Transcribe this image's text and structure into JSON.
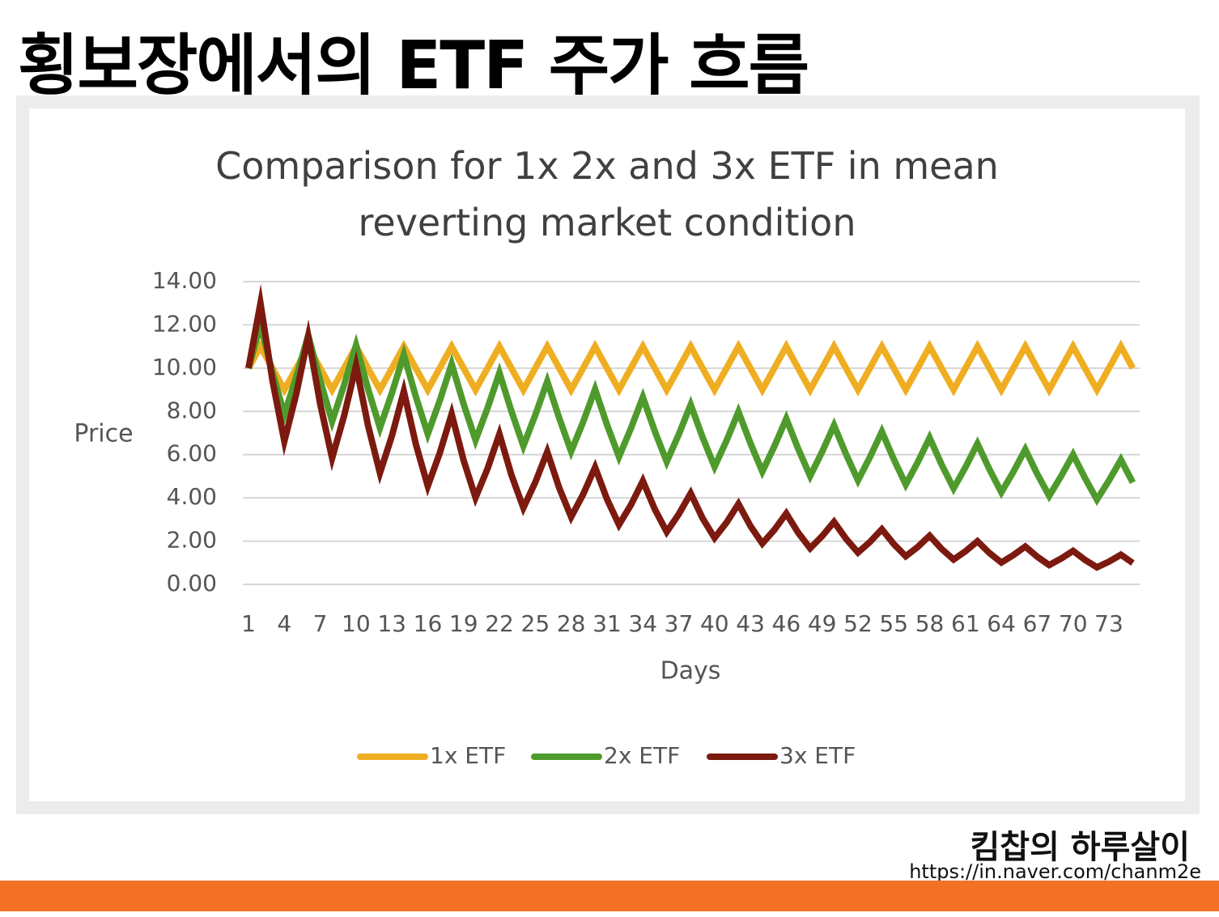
{
  "page": {
    "title": "횡보장에서의 ETF 주가 흐름",
    "brand": "킴찹의 하루살이",
    "url": "https://in.naver.com/chanm2e"
  },
  "chart_data": {
    "type": "line",
    "title": "Comparison for 1x 2x and 3x ETF in mean reverting market condition",
    "x_label": "Days",
    "y_label": "Price",
    "categories": [
      "1",
      null,
      null,
      "4",
      null,
      null,
      "7",
      null,
      null,
      "10",
      null,
      null,
      "13",
      null,
      null,
      "16",
      null,
      null,
      "19",
      null,
      null,
      "22",
      null,
      null,
      "25",
      null,
      null,
      "28",
      null,
      null,
      "31",
      null,
      null,
      "34",
      null,
      null,
      "37",
      null,
      null,
      "40",
      null,
      null,
      "43",
      null,
      null,
      "46",
      null,
      null,
      "49",
      null,
      null,
      "52",
      null,
      null,
      "55",
      null,
      null,
      "58",
      null,
      null,
      "61",
      null,
      null,
      "64",
      null,
      null,
      "67",
      null,
      null,
      "70",
      null,
      null,
      "73",
      null,
      null
    ],
    "ylim": [
      0,
      14
    ],
    "yticks": [
      {
        "value": 0,
        "label": "0.00"
      },
      {
        "value": 2,
        "label": "2.00"
      },
      {
        "value": 4,
        "label": "4.00"
      },
      {
        "value": 6,
        "label": "6.00"
      },
      {
        "value": 8,
        "label": "8.00"
      },
      {
        "value": 10,
        "label": "10.00"
      },
      {
        "value": 12,
        "label": "12.00"
      },
      {
        "value": 14,
        "label": "14.00"
      }
    ],
    "grid": true,
    "legend": "bottom",
    "series": [
      {
        "name": "1x ETF",
        "color": "#efae22",
        "values": [
          10,
          11,
          10,
          9,
          10,
          11,
          10,
          9,
          10,
          11,
          10,
          9,
          10,
          11,
          10,
          9,
          10,
          11,
          10,
          9,
          10,
          11,
          10,
          9,
          10,
          11,
          10,
          9,
          10,
          11,
          10,
          9,
          10,
          11,
          10,
          9,
          10,
          11,
          10,
          9,
          10,
          11,
          10,
          9,
          10,
          11,
          10,
          9,
          10,
          11,
          10,
          9,
          10,
          11,
          10,
          9,
          10,
          11,
          10,
          9,
          10,
          11,
          10,
          9,
          10,
          11,
          10,
          9,
          10,
          11,
          10,
          9,
          10,
          11,
          10
        ]
      },
      {
        "name": "2x ETF",
        "color": "#4f9a2c",
        "values": [
          10,
          12,
          9.82,
          7.85,
          9.6,
          11.52,
          9.43,
          7.54,
          9.22,
          11.06,
          9.05,
          7.24,
          8.85,
          10.62,
          8.69,
          6.95,
          8.49,
          10.19,
          8.34,
          6.67,
          8.15,
          9.78,
          8.01,
          6.4,
          7.83,
          9.39,
          7.69,
          6.15,
          7.51,
          9.02,
          7.38,
          5.9,
          7.21,
          8.66,
          7.08,
          5.67,
          6.93,
          8.31,
          6.8,
          5.44,
          6.65,
          7.98,
          6.53,
          5.22,
          6.38,
          7.66,
          6.27,
          5.01,
          6.13,
          7.35,
          6.02,
          4.81,
          5.88,
          7.06,
          5.78,
          4.62,
          5.65,
          6.78,
          5.54,
          4.44,
          5.42,
          6.51,
          5.32,
          4.26,
          5.2,
          6.24,
          5.11,
          4.09,
          5,
          6,
          4.91,
          3.92,
          4.8,
          5.76,
          4.71
        ]
      },
      {
        "name": "3x ETF",
        "color": "#7c1a0f",
        "values": [
          10,
          13,
          9.45,
          6.62,
          8.82,
          11.47,
          8.34,
          5.84,
          7.79,
          10.12,
          7.36,
          5.15,
          6.87,
          8.93,
          6.49,
          4.55,
          6.06,
          7.88,
          5.73,
          4.01,
          5.35,
          6.95,
          5.06,
          3.54,
          4.72,
          6.13,
          4.46,
          3.12,
          4.16,
          5.41,
          3.94,
          2.76,
          3.67,
          4.78,
          3.47,
          2.43,
          3.24,
          4.21,
          3.06,
          2.15,
          2.86,
          3.72,
          2.7,
          1.89,
          2.52,
          3.28,
          2.39,
          1.67,
          2.23,
          2.89,
          2.11,
          1.47,
          1.96,
          2.55,
          1.86,
          1.3,
          1.73,
          2.25,
          1.64,
          1.15,
          1.53,
          1.99,
          1.45,
          1.01,
          1.35,
          1.75,
          1.28,
          0.89,
          1.19,
          1.55,
          1.13,
          0.79,
          1.05,
          1.37,
          0.99
        ]
      }
    ]
  }
}
